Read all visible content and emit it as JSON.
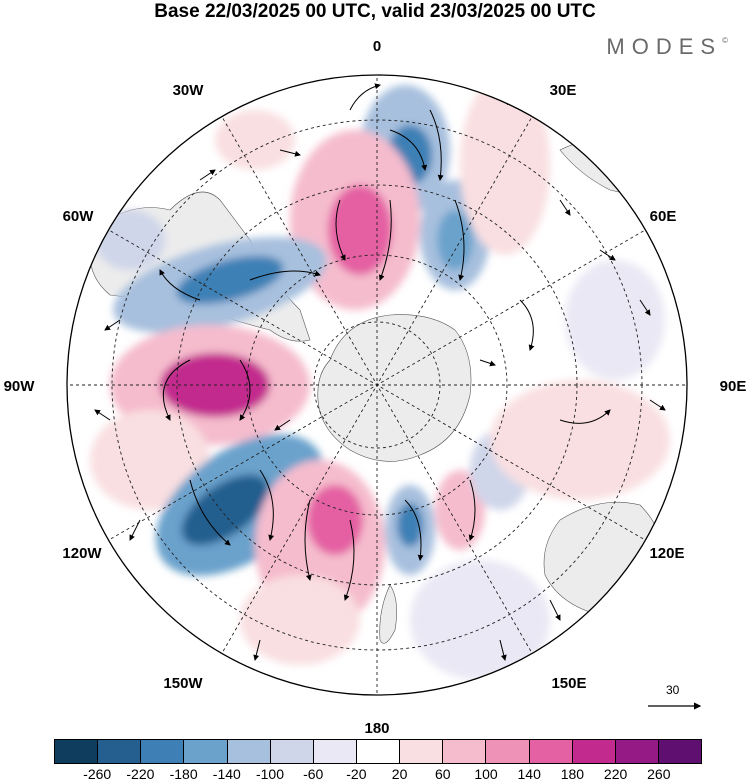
{
  "title": "Base 22/03/2025 00 UTC, valid 23/03/2025 00 UTC",
  "brand": {
    "name": "MODES",
    "mark": "©"
  },
  "longitude_labels": {
    "top": "0",
    "ne1": "30E",
    "ne2": "60E",
    "east": "90E",
    "se1": "120E",
    "se2": "150E",
    "bottom": "180",
    "sw2": "150W",
    "sw1": "120W",
    "west": "90W",
    "nw2": "60W",
    "nw1": "30W"
  },
  "reference_vector": {
    "label": "30"
  },
  "colorbar": {
    "colors": [
      "#0e3d5e",
      "#245f8f",
      "#3e80b5",
      "#6aa2cc",
      "#a7c0de",
      "#cfd6ea",
      "#e9e8f4",
      "#ffffff",
      "#f9dfe1",
      "#f5bccd",
      "#ef92b8",
      "#e461a3",
      "#c22a8e",
      "#961a86",
      "#5e0f70"
    ],
    "ticks": [
      "-260",
      "-220",
      "-180",
      "-140",
      "-100",
      "-60",
      "-20",
      "20",
      "60",
      "100",
      "140",
      "180",
      "220",
      "260"
    ]
  }
}
